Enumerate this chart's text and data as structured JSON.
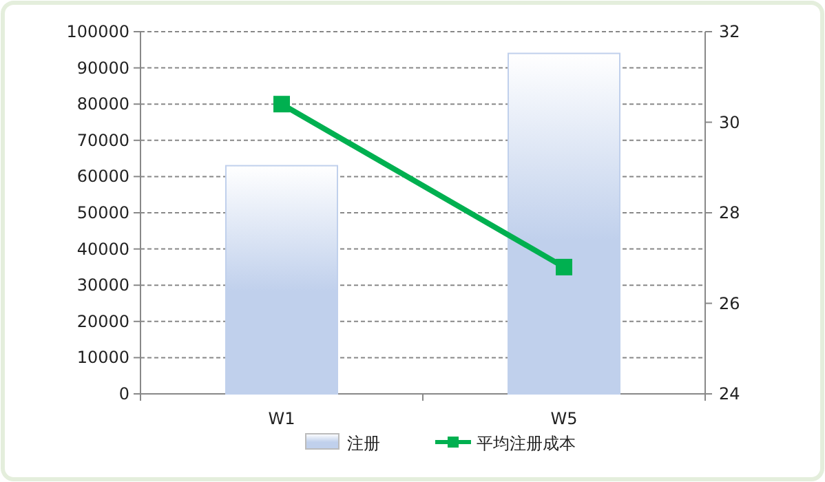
{
  "chart_data": {
    "type": "bar",
    "categories": [
      "W1",
      "W5"
    ],
    "series": [
      {
        "name": "注册",
        "color": "#c0d0ec",
        "values": [
          63000,
          94000
        ]
      },
      {
        "name": "平均注册成本",
        "type": "line",
        "axis": "y2",
        "color": "#00b050",
        "marker": "square",
        "values": [
          30.4,
          26.8
        ]
      }
    ],
    "ylim": [
      0,
      100000
    ],
    "yticks": [
      0,
      10000,
      20000,
      30000,
      40000,
      50000,
      60000,
      70000,
      80000,
      90000,
      100000
    ],
    "y2lim": [
      24,
      32
    ],
    "y2ticks": [
      24,
      26,
      28,
      30,
      32
    ],
    "grid": "y",
    "legend": "bottom"
  }
}
